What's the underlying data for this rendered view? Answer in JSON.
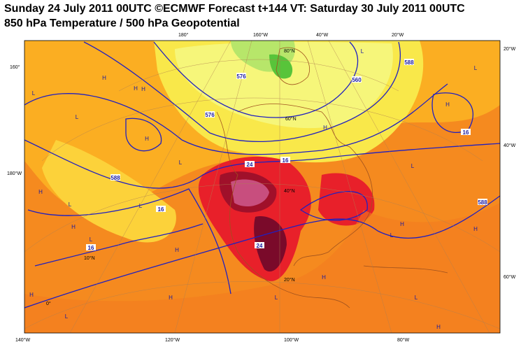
{
  "header": {
    "title": "Sunday 24 July 2011 00UTC ©ECMWF Forecast t+144 VT: Saturday 30 July 2011 00UTC",
    "subtitle": "850 hPa Temperature / 500 hPa Geopotential"
  },
  "map": {
    "graticule_labels": [
      "180°",
      "160°W",
      "40°W",
      "20°W",
      "160°",
      "180°W",
      "20°W",
      "40°W",
      "60°W",
      "140°W",
      "120°W",
      "100°W",
      "80°W",
      "80°N",
      "60°N",
      "40°N",
      "20°N",
      "10°N",
      "0°"
    ],
    "contour_labels": [
      "16",
      "24",
      "24",
      "16",
      "16",
      "16",
      "588",
      "576",
      "560",
      "588",
      "576",
      "588"
    ],
    "pressure_centers": [
      "H",
      "H",
      "L",
      "H",
      "L",
      "H",
      "L",
      "L",
      "H",
      "L",
      "H",
      "L",
      "H",
      "L",
      "H",
      "H",
      "L",
      "H",
      "L",
      "H",
      "H",
      "L",
      "H",
      "L",
      "H",
      "H",
      "L",
      "L"
    ]
  }
}
